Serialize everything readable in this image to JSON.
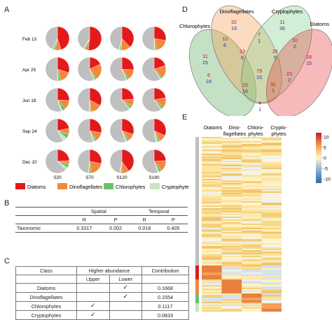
{
  "panels": {
    "a": "A",
    "b": "B",
    "c": "C",
    "d": "D",
    "e": "E"
  },
  "colors": {
    "Diatoms": "#e31a1c",
    "Dinoflagellates": "#f4883c",
    "Chlorophytes": "#6fbf6a",
    "Cryptophytes": "#c6e6c0",
    "Other": "#bfbfbf"
  },
  "chart_data": [
    {
      "type": "pie",
      "panel": "A",
      "rows": [
        "Feb 13",
        "Apr 25",
        "Jun 18",
        "Sep 24",
        "Dec 10"
      ],
      "columns": [
        "S20",
        "S70",
        "S120",
        "S180"
      ],
      "legend": [
        "Diatoms",
        "Dinoflagellates",
        "Chlorophytes",
        "Cryptophytes"
      ],
      "pies": [
        [
          [
            0.45,
            0.08,
            0.03,
            0.01
          ],
          [
            0.52,
            0.04,
            0.02,
            0.01
          ],
          [
            0.38,
            0.13,
            0.02,
            0.01
          ],
          [
            0.28,
            0.18,
            0.03,
            0.01
          ]
        ],
        [
          [
            0.3,
            0.15,
            0.04,
            0.01
          ],
          [
            0.18,
            0.22,
            0.03,
            0.01
          ],
          [
            0.26,
            0.14,
            0.03,
            0.01
          ],
          [
            0.2,
            0.17,
            0.03,
            0.01
          ]
        ],
        [
          [
            0.26,
            0.12,
            0.05,
            0.02
          ],
          [
            0.33,
            0.15,
            0.02,
            0.01
          ],
          [
            0.24,
            0.1,
            0.04,
            0.01
          ],
          [
            0.22,
            0.13,
            0.04,
            0.01
          ]
        ],
        [
          [
            0.22,
            0.08,
            0.06,
            0.06
          ],
          [
            0.28,
            0.12,
            0.03,
            0.02
          ],
          [
            0.3,
            0.1,
            0.03,
            0.02
          ],
          [
            0.32,
            0.1,
            0.03,
            0.02
          ]
        ],
        [
          [
            0.24,
            0.05,
            0.05,
            0.04
          ],
          [
            0.28,
            0.2,
            0.03,
            0.01
          ],
          [
            0.4,
            0.1,
            0.02,
            0.01
          ],
          [
            0.24,
            0.15,
            0.04,
            0.02
          ]
        ]
      ]
    },
    {
      "type": "table",
      "panel": "D",
      "sets": [
        "Chlorophytes",
        "Dinoflagellates",
        "Cryptophytes",
        "Diatoms"
      ],
      "counts": [
        {
          "red": "32",
          "blue": "19"
        },
        {
          "red": "11",
          "blue": "36"
        },
        {
          "red": "11",
          "blue": "25"
        },
        {
          "red": "28",
          "blue": "15"
        },
        {
          "red": "7",
          "blue": "1"
        },
        {
          "red": "10",
          "blue": "8"
        },
        {
          "red": "13",
          "blue": "6"
        },
        {
          "red": "25",
          "blue": "5"
        },
        {
          "red": "10",
          "blue": "2"
        },
        {
          "red": "79",
          "blue": "15"
        },
        {
          "red": "6",
          "blue": "24"
        },
        {
          "red": "23",
          "blue": "2"
        },
        {
          "red": "15",
          "blue": "18"
        },
        {
          "red": "31",
          "blue": "1"
        },
        {
          "red": "4",
          "blue": "1"
        }
      ]
    },
    {
      "type": "heatmap",
      "panel": "E",
      "columns": [
        [
          "Diatoms"
        ],
        [
          "Dino-",
          "flagellates"
        ],
        [
          "Chloro-",
          "phytes"
        ],
        [
          "Crypto-",
          "phytes"
        ]
      ],
      "colorbar_ticks": [
        "10",
        "5",
        "0",
        "-5",
        "-10"
      ],
      "range": [
        -12,
        12
      ]
    }
  ],
  "tableB": {
    "groups": [
      "Spatial",
      "Temporal"
    ],
    "subheaders": [
      "R",
      "P",
      "R",
      "P"
    ],
    "row_label": "Taxonomic",
    "values": [
      "0.3317",
      "0.002",
      "0.018",
      "0.405"
    ]
  },
  "tableC": {
    "headers": [
      "Class",
      "Higher abundance",
      "Contribution"
    ],
    "subheaders": [
      "Upper",
      "Lower"
    ],
    "check": "✓",
    "rows": [
      {
        "class": "Diatoms",
        "upper": "",
        "lower": "✓",
        "contribution": "0.1668"
      },
      {
        "class": "Dinoflagellates",
        "upper": "",
        "lower": "✓",
        "contribution": "0.1554"
      },
      {
        "class": "Chlorophytes",
        "upper": "✓",
        "lower": "",
        "contribution": "0.1117"
      },
      {
        "class": "Cryptophytes",
        "upper": "✓",
        "lower": "",
        "contribution": "0.0833"
      }
    ]
  }
}
